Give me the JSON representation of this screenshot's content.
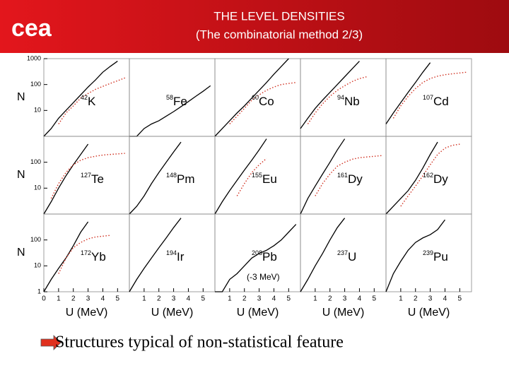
{
  "header": {
    "title": "THE LEVEL DENSITIES",
    "subtitle": "(The combinatorial method 2/3)",
    "logo": "cea"
  },
  "footer": {
    "text": "Structures typical of non-statistical feature"
  },
  "chart_data": [
    {
      "type": "line",
      "log_y": true,
      "xlim": [
        0,
        5.8
      ],
      "ylim": [
        1,
        1000
      ],
      "ylabel": "N",
      "yticks": [
        10,
        100,
        1000
      ],
      "label": {
        "mass": "42",
        "symbol": "K"
      },
      "x": [
        0,
        0.5,
        1,
        1.5,
        2,
        2.5,
        3,
        3.5,
        4,
        4.5,
        5,
        5.5
      ],
      "series": [
        {
          "color": "#000000",
          "style": "solid",
          "values": [
            1,
            2,
            5,
            10,
            20,
            40,
            80,
            150,
            300,
            500,
            800,
            null
          ]
        },
        {
          "color": "#d03020",
          "style": "dotted",
          "values": [
            null,
            null,
            3,
            8,
            15,
            30,
            45,
            65,
            85,
            110,
            140,
            180
          ]
        }
      ]
    },
    {
      "type": "line",
      "log_y": true,
      "xlim": [
        0,
        5.8
      ],
      "ylim": [
        1,
        1000
      ],
      "label": {
        "mass": "58",
        "symbol": "Fe"
      },
      "x": [
        0,
        0.5,
        1,
        1.5,
        2,
        2.5,
        3,
        3.5,
        4,
        4.5,
        5,
        5.5
      ],
      "series": [
        {
          "color": "#000000",
          "style": "solid",
          "values": [
            1,
            1,
            2,
            3,
            4,
            6,
            9,
            14,
            22,
            35,
            55,
            90
          ]
        }
      ]
    },
    {
      "type": "line",
      "log_y": true,
      "xlim": [
        0,
        5.8
      ],
      "ylim": [
        1,
        1000
      ],
      "label": {
        "mass": "60",
        "symbol": "Co"
      },
      "x": [
        0,
        0.5,
        1,
        1.5,
        2,
        2.5,
        3,
        3.5,
        4,
        4.5,
        5,
        5.5
      ],
      "series": [
        {
          "color": "#000000",
          "style": "solid",
          "values": [
            1,
            2,
            4,
            8,
            15,
            30,
            60,
            120,
            250,
            500,
            1000,
            null
          ]
        },
        {
          "color": "#d03020",
          "style": "dotted",
          "values": [
            null,
            null,
            3,
            6,
            12,
            25,
            40,
            60,
            80,
            100,
            110,
            120
          ]
        }
      ]
    },
    {
      "type": "line",
      "log_y": true,
      "xlim": [
        0,
        5.8
      ],
      "ylim": [
        1,
        1000
      ],
      "label": {
        "mass": "94",
        "symbol": "Nb"
      },
      "x": [
        0,
        0.5,
        1,
        1.5,
        2,
        2.5,
        3,
        3.5,
        4,
        4.5,
        5,
        5.5
      ],
      "series": [
        {
          "color": "#000000",
          "style": "solid",
          "values": [
            2,
            5,
            12,
            25,
            50,
            100,
            200,
            400,
            800,
            null,
            null,
            null
          ]
        },
        {
          "color": "#d03020",
          "style": "dotted",
          "values": [
            null,
            3,
            8,
            18,
            35,
            60,
            90,
            130,
            170,
            200,
            null,
            null
          ]
        }
      ]
    },
    {
      "type": "line",
      "log_y": true,
      "xlim": [
        0,
        5.8
      ],
      "ylim": [
        1,
        1000
      ],
      "label": {
        "mass": "107",
        "symbol": "Cd"
      },
      "x": [
        0,
        0.5,
        1,
        1.5,
        2,
        2.5,
        3,
        3.5,
        4,
        4.5,
        5,
        5.5
      ],
      "series": [
        {
          "color": "#000000",
          "style": "solid",
          "values": [
            3,
            8,
            20,
            50,
            120,
            300,
            700,
            null,
            null,
            null,
            null,
            null
          ]
        },
        {
          "color": "#d03020",
          "style": "dotted",
          "values": [
            null,
            5,
            15,
            35,
            70,
            120,
            170,
            210,
            240,
            260,
            280,
            300
          ]
        }
      ]
    },
    {
      "type": "line",
      "log_y": true,
      "xlim": [
        0,
        5.8
      ],
      "ylim": [
        1,
        1000
      ],
      "ylabel": "N",
      "yticks": [
        10,
        100
      ],
      "label": {
        "mass": "127",
        "symbol": "Te"
      },
      "x": [
        0,
        0.5,
        1,
        1.5,
        2,
        2.5,
        3,
        3.5,
        4,
        4.5,
        5,
        5.5
      ],
      "series": [
        {
          "color": "#000000",
          "style": "solid",
          "values": [
            1,
            3,
            10,
            30,
            80,
            200,
            500,
            null,
            null,
            null,
            null,
            null
          ]
        },
        {
          "color": "#d03020",
          "style": "dotted",
          "values": [
            null,
            4,
            15,
            40,
            80,
            120,
            150,
            170,
            190,
            200,
            210,
            220
          ]
        }
      ]
    },
    {
      "type": "line",
      "log_y": true,
      "xlim": [
        0,
        5.8
      ],
      "ylim": [
        1,
        1000
      ],
      "label": {
        "mass": "148",
        "symbol": "Pm"
      },
      "x": [
        0,
        0.5,
        1,
        1.5,
        2,
        2.5,
        3,
        3.5,
        4,
        4.5,
        5,
        5.5
      ],
      "series": [
        {
          "color": "#000000",
          "style": "solid",
          "values": [
            1,
            2,
            5,
            15,
            40,
            100,
            250,
            600,
            null,
            null,
            null,
            null
          ]
        }
      ]
    },
    {
      "type": "line",
      "log_y": true,
      "xlim": [
        0,
        5.8
      ],
      "ylim": [
        1,
        1000
      ],
      "label": {
        "mass": "155",
        "symbol": "Eu"
      },
      "x": [
        0,
        0.5,
        1,
        1.5,
        2,
        2.5,
        3,
        3.5,
        4,
        4.5,
        5,
        5.5
      ],
      "series": [
        {
          "color": "#000000",
          "style": "solid",
          "values": [
            1,
            3,
            8,
            20,
            50,
            120,
            300,
            800,
            null,
            null,
            null,
            null
          ]
        },
        {
          "color": "#d03020",
          "style": "dotted",
          "values": [
            null,
            null,
            null,
            5,
            15,
            40,
            80,
            140,
            null,
            null,
            null,
            null
          ]
        }
      ]
    },
    {
      "type": "line",
      "log_y": true,
      "xlim": [
        0,
        5.8
      ],
      "ylim": [
        1,
        1000
      ],
      "label": {
        "mass": "161",
        "symbol": "Dy"
      },
      "x": [
        0,
        0.5,
        1,
        1.5,
        2,
        2.5,
        3,
        3.5,
        4,
        4.5,
        5,
        5.5
      ],
      "series": [
        {
          "color": "#000000",
          "style": "solid",
          "values": [
            1,
            4,
            12,
            35,
            100,
            300,
            800,
            null,
            null,
            null,
            null,
            null
          ]
        },
        {
          "color": "#d03020",
          "style": "dotted",
          "values": [
            null,
            null,
            5,
            15,
            35,
            70,
            100,
            130,
            150,
            160,
            170,
            180
          ]
        }
      ]
    },
    {
      "type": "line",
      "log_y": true,
      "xlim": [
        0,
        5.8
      ],
      "ylim": [
        1,
        1000
      ],
      "label": {
        "mass": "162",
        "symbol": "Dy"
      },
      "x": [
        0,
        0.5,
        1,
        1.5,
        2,
        2.5,
        3,
        3.5,
        4,
        4.5,
        5,
        5.5
      ],
      "series": [
        {
          "color": "#000000",
          "style": "solid",
          "values": [
            1,
            2,
            4,
            8,
            20,
            60,
            200,
            600,
            null,
            null,
            null,
            null
          ]
        },
        {
          "color": "#d03020",
          "style": "dotted",
          "values": [
            null,
            null,
            2,
            5,
            12,
            30,
            80,
            200,
            350,
            450,
            500,
            null
          ]
        }
      ]
    },
    {
      "type": "line",
      "log_y": true,
      "xlim": [
        0,
        5.8
      ],
      "ylim": [
        1,
        1000
      ],
      "ylabel": "N",
      "yticks": [
        1,
        10,
        100
      ],
      "xticks": [
        0,
        1,
        2,
        3,
        4,
        5
      ],
      "xlabel": "U (MeV)",
      "label": {
        "mass": "172",
        "symbol": "Yb"
      },
      "x": [
        0,
        0.5,
        1,
        1.5,
        2,
        2.5,
        3,
        3.5,
        4,
        4.5,
        5,
        5.5
      ],
      "series": [
        {
          "color": "#000000",
          "style": "solid",
          "values": [
            1,
            3,
            8,
            20,
            60,
            200,
            500,
            null,
            null,
            null,
            null,
            null
          ]
        },
        {
          "color": "#d03020",
          "style": "dotted",
          "values": [
            null,
            null,
            5,
            20,
            50,
            80,
            110,
            130,
            140,
            150,
            null,
            null
          ]
        }
      ]
    },
    {
      "type": "line",
      "log_y": true,
      "xlim": [
        0,
        5.8
      ],
      "ylim": [
        1,
        1000
      ],
      "xticks": [
        1,
        2,
        3,
        4,
        5
      ],
      "xlabel": "U (MeV)",
      "label": {
        "mass": "194",
        "symbol": "Ir"
      },
      "x": [
        0,
        0.5,
        1,
        1.5,
        2,
        2.5,
        3,
        3.5,
        4,
        4.5,
        5,
        5.5
      ],
      "series": [
        {
          "color": "#000000",
          "style": "solid",
          "values": [
            1,
            3,
            8,
            20,
            50,
            120,
            300,
            700,
            null,
            null,
            null,
            null
          ]
        }
      ]
    },
    {
      "type": "line",
      "log_y": true,
      "xlim": [
        0,
        5.8
      ],
      "ylim": [
        1,
        1000
      ],
      "xticks": [
        1,
        2,
        3,
        4,
        5
      ],
      "xlabel": "U (MeV)",
      "label": {
        "mass": "208",
        "symbol": "Pb"
      },
      "annotation": "(-3 MeV)",
      "x": [
        0,
        0.5,
        1,
        1.5,
        2,
        2.5,
        3,
        3.5,
        4,
        4.5,
        5,
        5.5
      ],
      "series": [
        {
          "color": "#000000",
          "style": "solid",
          "values": [
            1,
            1,
            3,
            5,
            10,
            20,
            30,
            40,
            60,
            100,
            200,
            400
          ]
        }
      ]
    },
    {
      "type": "line",
      "log_y": true,
      "xlim": [
        0,
        5.8
      ],
      "ylim": [
        1,
        1000
      ],
      "xticks": [
        1,
        2,
        3,
        4,
        5
      ],
      "xlabel": "U (MeV)",
      "label": {
        "mass": "237",
        "symbol": "U"
      },
      "x": [
        0,
        0.5,
        1,
        1.5,
        2,
        2.5,
        3,
        3.5,
        4,
        4.5,
        5,
        5.5
      ],
      "series": [
        {
          "color": "#000000",
          "style": "solid",
          "values": [
            1,
            3,
            10,
            30,
            100,
            300,
            700,
            null,
            null,
            null,
            null,
            null
          ]
        }
      ]
    },
    {
      "type": "line",
      "log_y": true,
      "xlim": [
        0,
        5.8
      ],
      "ylim": [
        1,
        1000
      ],
      "xticks": [
        1,
        2,
        3,
        4,
        5
      ],
      "xlabel": "U (MeV)",
      "label": {
        "mass": "239",
        "symbol": "Pu"
      },
      "x": [
        0,
        0.5,
        1,
        1.5,
        2,
        2.5,
        3,
        3.5,
        4,
        4.5,
        5,
        5.5
      ],
      "series": [
        {
          "color": "#000000",
          "style": "solid",
          "values": [
            1,
            5,
            15,
            40,
            80,
            120,
            160,
            250,
            600,
            null,
            null,
            null
          ]
        }
      ]
    }
  ]
}
